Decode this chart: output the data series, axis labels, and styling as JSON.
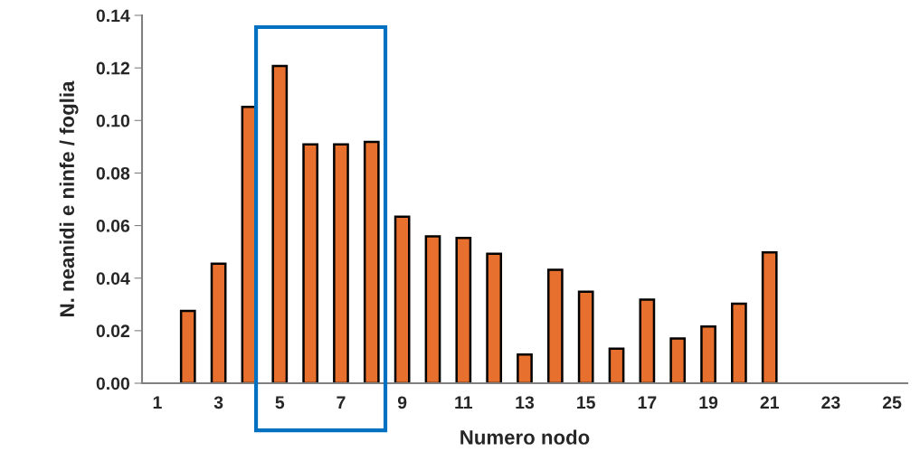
{
  "chart_data": {
    "type": "bar",
    "xlabel": "Numero nodo",
    "ylabel": "N. neanidi e ninfe / foglia",
    "categories": [
      "1",
      null,
      "3",
      null,
      "5",
      null,
      "7",
      null,
      "9",
      null,
      "11",
      null,
      "13",
      null,
      "15",
      null,
      "17",
      null,
      "19",
      null,
      "21",
      null,
      "23",
      null,
      "25"
    ],
    "series": [
      {
        "color": "#e8702f",
        "values": [
          null,
          0.0275,
          0.0455,
          0.1052,
          0.1207,
          0.0909,
          0.0909,
          0.0918,
          0.0634,
          0.0559,
          0.0553,
          0.0493,
          0.0109,
          0.0432,
          0.0348,
          0.0132,
          0.0318,
          0.017,
          0.0216,
          0.0303,
          0.0498,
          null,
          null,
          null,
          null
        ]
      }
    ],
    "ylim": [
      0,
      0.14
    ],
    "yticks": [
      {
        "value": 0,
        "label": "0.00"
      },
      {
        "value": 0.02,
        "label": "0.02"
      },
      {
        "value": 0.04,
        "label": "0.04"
      },
      {
        "value": 0.06,
        "label": "0.06"
      },
      {
        "value": 0.08,
        "label": "0.08"
      },
      {
        "value": 0.1,
        "label": "0.10"
      },
      {
        "value": 0.12,
        "label": "0.12"
      },
      {
        "value": 0.14,
        "label": "0.14"
      }
    ],
    "grid": false,
    "legend": false
  }
}
